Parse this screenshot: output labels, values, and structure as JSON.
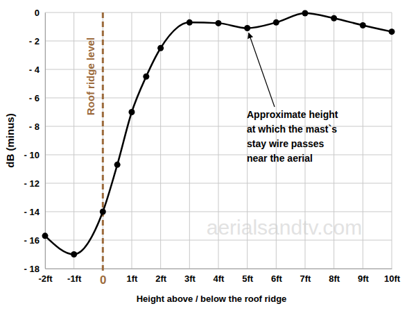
{
  "chart_data": {
    "type": "line",
    "x_label": "Height above / below the roof ridge",
    "y_label": "dB (minus)",
    "x": [
      -2,
      -1,
      0,
      0.5,
      1,
      1.5,
      2,
      3,
      4,
      5,
      6,
      7,
      8,
      9,
      10
    ],
    "values": [
      -15.7,
      -17,
      -14,
      -10.7,
      -7,
      -4.5,
      -2.5,
      -0.7,
      -0.75,
      -1.1,
      -0.7,
      -0.05,
      -0.4,
      -0.9,
      -1.35
    ],
    "color": "#000000",
    "marker": "circle",
    "line_style": "solid",
    "xlim": [
      -2,
      10
    ],
    "xticks": [
      {
        "value": -2,
        "label": "-2ft"
      },
      {
        "value": -1,
        "label": "-1ft"
      },
      0,
      {
        "value": 1,
        "label": "1ft"
      },
      {
        "value": 2,
        "label": "2ft"
      },
      {
        "value": 3,
        "label": "3ft"
      },
      {
        "value": 4,
        "label": "4ft"
      },
      {
        "value": 5,
        "label": "5ft"
      },
      {
        "value": 6,
        "label": "6ft"
      },
      {
        "value": 7,
        "label": "7ft"
      },
      {
        "value": 8,
        "label": "8ft"
      },
      {
        "value": 9,
        "label": "9ft"
      },
      {
        "value": 10,
        "label": "10ft"
      }
    ],
    "ylim": [
      -18,
      0
    ],
    "yticks": [
      0,
      {
        "value": -2,
        "label": "- 2"
      },
      {
        "value": -4,
        "label": "- 4"
      },
      {
        "value": -6,
        "label": "- 6"
      },
      {
        "value": -8,
        "label": "- 8"
      },
      {
        "value": -10,
        "label": "- 10"
      },
      {
        "value": -12,
        "label": "- 12"
      },
      {
        "value": -14,
        "label": "- 14"
      },
      {
        "value": -16,
        "label": "- 16"
      },
      {
        "value": -18,
        "label": "- 18"
      }
    ],
    "grid": true,
    "reference_line": {
      "x": 0,
      "label": "Roof ridge level",
      "color": "#9c6b3c"
    },
    "annotation": {
      "x": 5,
      "y": -1.1,
      "lines": [
        "Approximate height",
        "at which the mast`s",
        "stay wire passes",
        "near the aerial"
      ]
    },
    "watermark": "aerialsandtv.com"
  }
}
